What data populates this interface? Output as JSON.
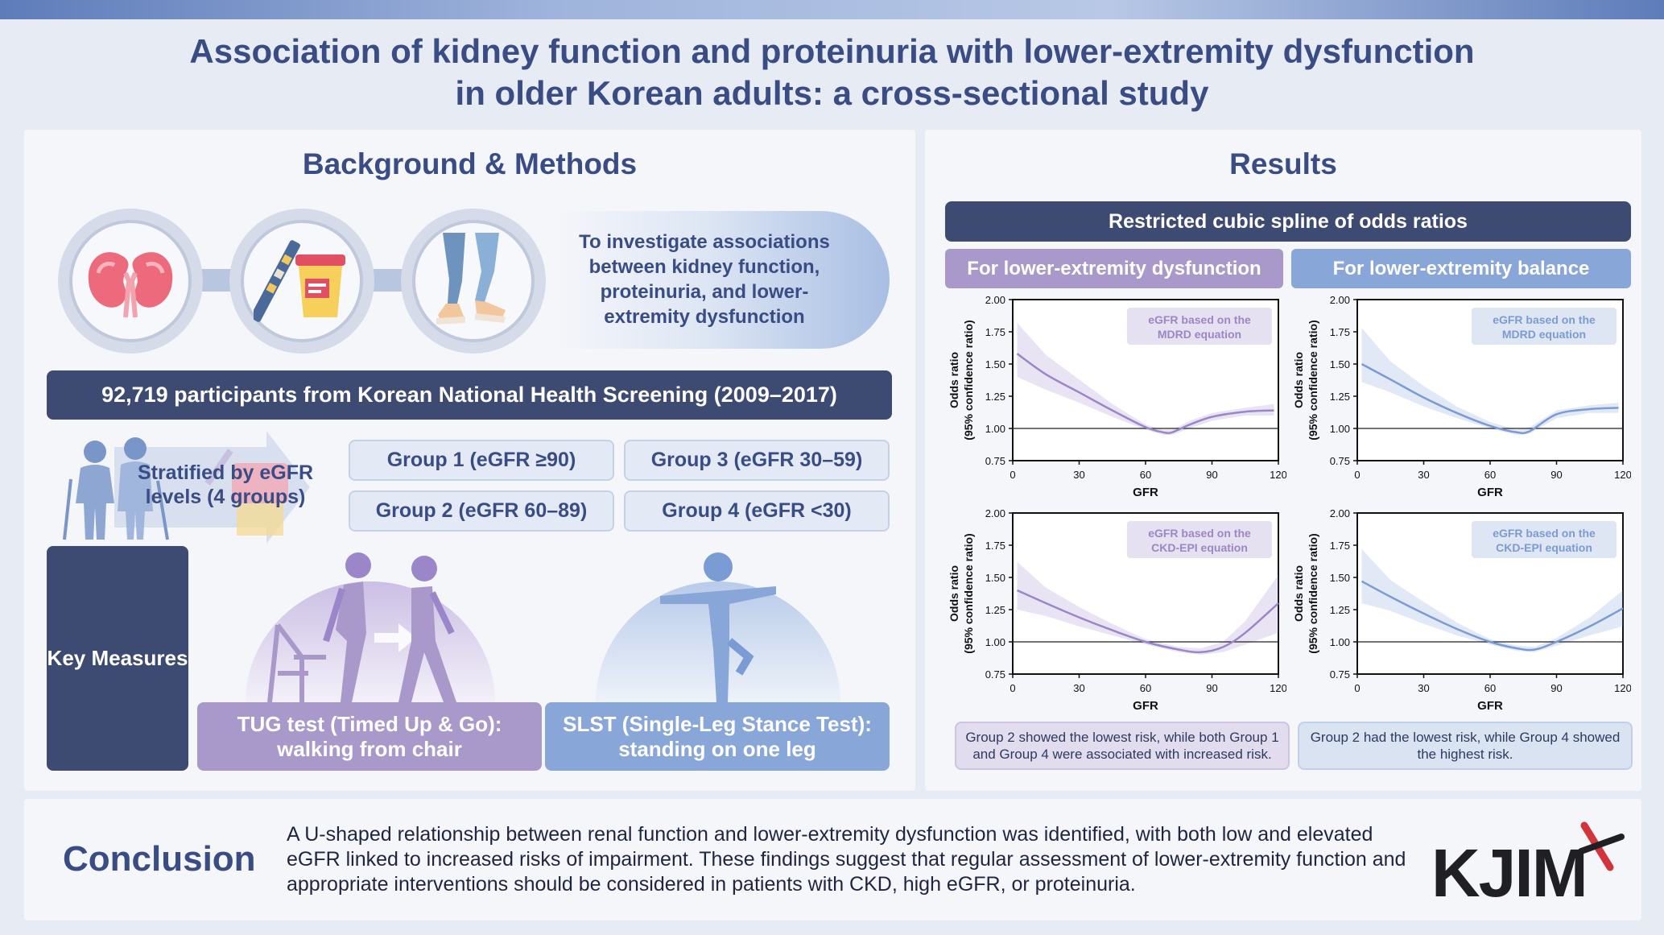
{
  "title": {
    "line1": "Association of kidney function and proteinuria with lower-extremity dysfunction",
    "line2": "in older Korean adults: a cross-sectional study"
  },
  "left": {
    "heading": "Background & Methods",
    "icons": [
      "kidney-icon",
      "urine-test-icon",
      "legs-icon"
    ],
    "aim": "To investigate associations between kidney function, proteinuria, and lower-extremity dysfunction",
    "participants": "92,719 participants from Korean National Health Screening (2009–2017)",
    "stratified": "Stratified by eGFR levels (4 groups)",
    "groups": [
      "Group 1 (eGFR ≥90)",
      "Group 2 (eGFR 60–89)",
      "Group 3 (eGFR 30–59)",
      "Group 4 (eGFR <30)"
    ],
    "key_measures": "Key Measures",
    "tug": "TUG test (Timed Up & Go): walking from chair",
    "slst": "SLST (Single-Leg Stance Test): standing on one leg"
  },
  "right": {
    "heading": "Results",
    "spline_title": "Restricted cubic spline of odds ratios",
    "tab_dysfunction": "For lower-extremity dysfunction",
    "tab_balance": "For lower-extremity balance",
    "summary_dysfunction": "Group 2 showed the lowest risk, while both Group 1 and Group 4 were associated with increased risk.",
    "summary_balance": "Group 2 had the lowest risk, while Group 4 showed the highest risk."
  },
  "conclusion": {
    "label": "Conclusion",
    "text": "A U-shaped relationship between renal function and lower-extremity dysfunction was identified, with both low and elevated eGFR linked to increased risks of impairment. These findings suggest that regular assessment of lower-extremity function and appropriate interventions should be considered in patients with CKD, high eGFR, or proteinuria.",
    "logo": "KJIM"
  },
  "colors": {
    "navy": "#3d4a72",
    "purple": "#a998ca",
    "blue": "#88a6d8",
    "purple_line": "#9a86c8",
    "blue_line": "#7b9bd4",
    "logo_red": "#d2343c"
  },
  "chart_data": [
    {
      "type": "line",
      "annotation": "eGFR based on the MDRD equation",
      "xlabel": "GFR",
      "ylabel": "Odds ratio (95% confidence ratio)",
      "xticks": [
        0,
        30,
        60,
        90,
        120
      ],
      "yticks": [
        "0.75",
        "1.00",
        "1.25",
        "1.50",
        "1.75",
        "2.00"
      ],
      "xlim": [
        0,
        120
      ],
      "ylim": [
        0.75,
        2.0
      ],
      "reference_line": 1.0,
      "color": "#9a86c8",
      "x": [
        2,
        15,
        30,
        45,
        60,
        68,
        72,
        80,
        90,
        105,
        118
      ],
      "y": [
        1.58,
        1.42,
        1.28,
        1.14,
        1.01,
        0.97,
        0.97,
        1.03,
        1.09,
        1.13,
        1.14
      ],
      "lower": [
        1.4,
        1.3,
        1.2,
        1.09,
        0.99,
        0.95,
        0.95,
        1.0,
        1.06,
        1.1,
        1.1
      ],
      "upper": [
        1.82,
        1.57,
        1.38,
        1.19,
        1.03,
        0.99,
        0.99,
        1.06,
        1.12,
        1.16,
        1.19
      ]
    },
    {
      "type": "line",
      "annotation": "eGFR based on the MDRD equation",
      "xlabel": "GFR",
      "ylabel": "Odds ratio (95% confidence ratio)",
      "xticks": [
        0,
        30,
        60,
        90,
        120
      ],
      "yticks": [
        "0.75",
        "1.00",
        "1.25",
        "1.50",
        "1.75",
        "2.00"
      ],
      "xlim": [
        0,
        120
      ],
      "ylim": [
        0.75,
        2.0
      ],
      "reference_line": 1.0,
      "color": "#7b9bd4",
      "x": [
        2,
        15,
        30,
        45,
        60,
        72,
        78,
        90,
        105,
        118
      ],
      "y": [
        1.5,
        1.38,
        1.24,
        1.12,
        1.02,
        0.97,
        0.98,
        1.11,
        1.15,
        1.16
      ],
      "lower": [
        1.36,
        1.28,
        1.17,
        1.08,
        1.0,
        0.95,
        0.96,
        1.08,
        1.12,
        1.12
      ],
      "upper": [
        1.78,
        1.52,
        1.33,
        1.17,
        1.05,
        0.99,
        1.01,
        1.14,
        1.18,
        1.2
      ]
    },
    {
      "type": "line",
      "annotation": "eGFR based on the CKD-EPI equation",
      "xlabel": "GFR",
      "ylabel": "Odds ratio (95% confidence ratio)",
      "xticks": [
        0,
        30,
        60,
        90,
        120
      ],
      "yticks": [
        "0.75",
        "1.00",
        "1.25",
        "1.50",
        "1.75",
        "2.00"
      ],
      "xlim": [
        0,
        120
      ],
      "ylim": [
        0.75,
        2.0
      ],
      "reference_line": 1.0,
      "color": "#9a86c8",
      "x": [
        2,
        15,
        30,
        45,
        60,
        75,
        85,
        95,
        105,
        120
      ],
      "y": [
        1.4,
        1.3,
        1.19,
        1.09,
        1.0,
        0.94,
        0.92,
        0.96,
        1.07,
        1.3
      ],
      "lower": [
        1.25,
        1.2,
        1.12,
        1.05,
        0.98,
        0.92,
        0.9,
        0.92,
        0.98,
        1.07
      ],
      "upper": [
        1.62,
        1.42,
        1.27,
        1.14,
        1.02,
        0.96,
        0.95,
        1.0,
        1.16,
        1.52
      ]
    },
    {
      "type": "line",
      "annotation": "eGFR based on the CKD-EPI equation",
      "xlabel": "GFR",
      "ylabel": "Odds ratio (95% confidence ratio)",
      "xticks": [
        0,
        30,
        60,
        90,
        120
      ],
      "yticks": [
        "0.75",
        "1.00",
        "1.25",
        "1.50",
        "1.75",
        "2.00"
      ],
      "xlim": [
        0,
        120
      ],
      "ylim": [
        0.75,
        2.0
      ],
      "reference_line": 1.0,
      "color": "#7b9bd4",
      "x": [
        2,
        15,
        30,
        45,
        60,
        72,
        80,
        90,
        105,
        120
      ],
      "y": [
        1.47,
        1.35,
        1.22,
        1.1,
        1.0,
        0.95,
        0.94,
        1.0,
        1.12,
        1.26
      ],
      "lower": [
        1.3,
        1.24,
        1.14,
        1.05,
        0.98,
        0.93,
        0.92,
        0.97,
        1.05,
        1.12
      ],
      "upper": [
        1.72,
        1.48,
        1.31,
        1.15,
        1.02,
        0.97,
        0.96,
        1.03,
        1.19,
        1.4
      ]
    }
  ]
}
